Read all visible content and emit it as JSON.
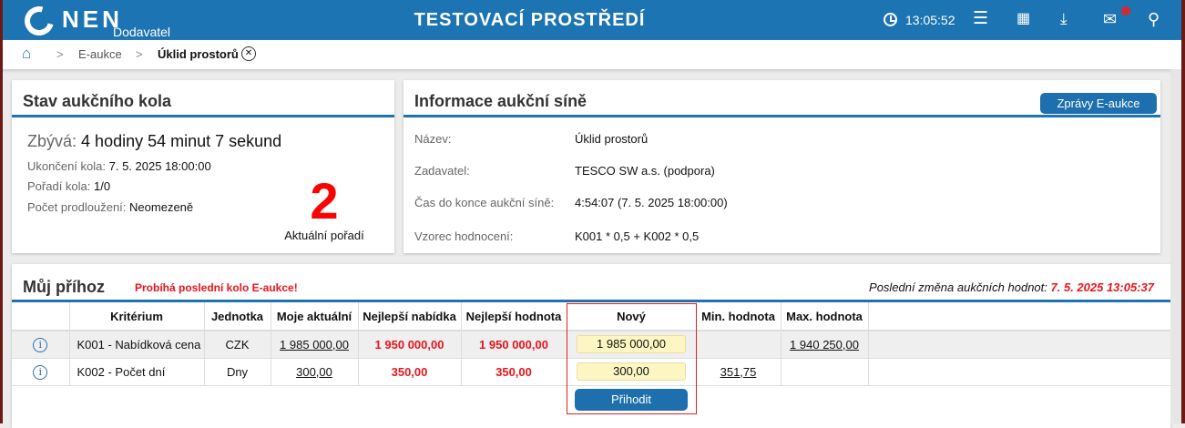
{
  "header": {
    "logo": "NEN",
    "sublogo": "Dodavatel",
    "title": "TESTOVACÍ PROSTŘEDÍ",
    "time": "13:05:52",
    "icons": [
      "clock-icon",
      "menu-icon",
      "calendar-icon",
      "download-icon",
      "mail-icon",
      "user-icon"
    ],
    "accent": "#1d74b3"
  },
  "breadcrumb": {
    "items": [
      "E-aukce",
      "Úklid prostorů"
    ]
  },
  "status": {
    "title": "Stav aukčního kola",
    "remaining_label": "Zbývá:",
    "remaining": "4 hodiny 54 minut 7 sekund",
    "end_label": "Ukončení kola:",
    "end": "7. 5. 2025 18:00:00",
    "round_label": "Pořadí kola:",
    "round": "1/0",
    "ext_label": "Počet prodloužení:",
    "ext": "Neomezeně",
    "rank": "2",
    "rank_label": "Aktuální pořadí"
  },
  "info": {
    "title": "Informace aukční síně",
    "button": "Zprávy E-aukce",
    "rows": [
      {
        "label": "Název:",
        "value": "Úklid prostorů"
      },
      {
        "label": "Zadavatel:",
        "value": "TESCO SW a.s. (podpora)"
      },
      {
        "label": "Čas do konce aukční síně:",
        "value": "4:54:07 (7. 5. 2025 18:00:00)"
      },
      {
        "label": "Vzorec hodnocení:",
        "value": "K001 * 0,5 + K002 * 0,5"
      }
    ]
  },
  "bid": {
    "title": "Můj příhoz",
    "warning": "Probíhá poslední kolo E-aukce!",
    "last_change_label": "Poslední změna aukčních hodnot:",
    "last_change": "7. 5. 2025 13:05:37",
    "columns": [
      "Kritérium",
      "Jednotka",
      "Moje aktuální",
      "Nejlepší nabídka",
      "Nejlepší hodnota",
      "Nový",
      "Min. hodnota",
      "Max. hodnota"
    ],
    "rows": [
      {
        "criterion": "K001 - Nabídková cena",
        "unit": "CZK",
        "mine": "1 985 000,00",
        "best_offer": "1 950 000,00",
        "best_value": "1 950 000,00",
        "new": "1 985 000,00",
        "min": "",
        "max": "1 940 250,00"
      },
      {
        "criterion": "K002 - Počet dní",
        "unit": "Dny",
        "mine": "300,00",
        "best_offer": "350,00",
        "best_value": "350,00",
        "new": "300,00",
        "min": "351,75",
        "max": ""
      }
    ],
    "submit": "Přihodit"
  }
}
